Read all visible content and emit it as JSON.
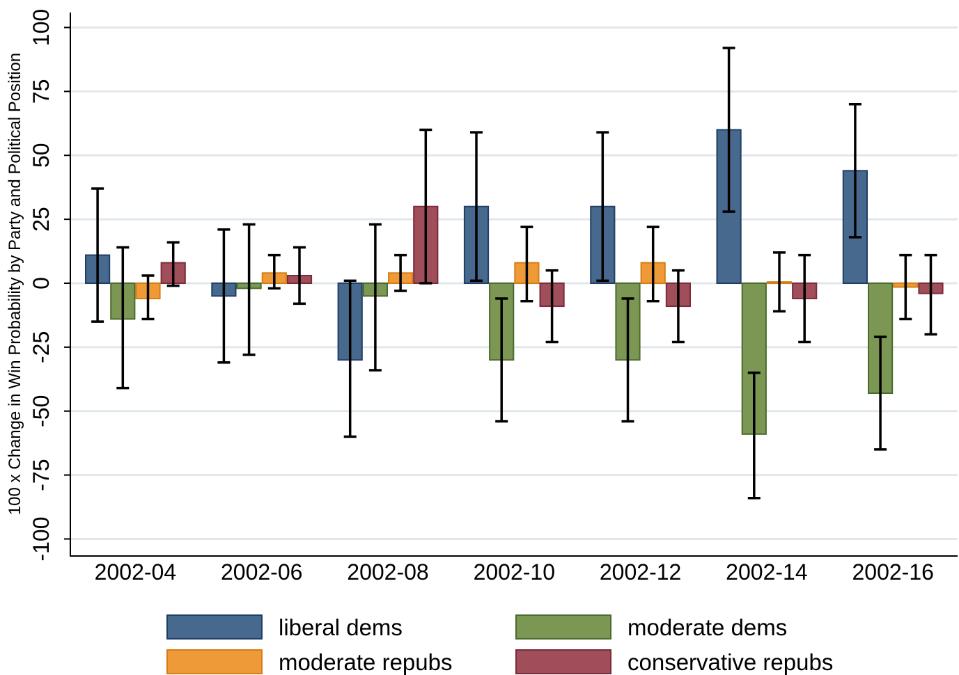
{
  "chart_data": {
    "type": "bar",
    "ylabel": "100 x Change in Win Probability by Party and Political Position",
    "xlabel": "",
    "ylim": [
      -105,
      107
    ],
    "yticks": [
      -100,
      -75,
      -50,
      -25,
      0,
      25,
      50,
      75,
      100
    ],
    "ytick_labels": [
      "-100",
      "-75",
      "-50",
      "-25",
      "0",
      "25",
      "50",
      "75",
      "100"
    ],
    "grid": true,
    "legend_position": "bottom",
    "categories": [
      "2002-04",
      "2002-06",
      "2002-08",
      "2002-10",
      "2002-12",
      "2002-14",
      "2002-16"
    ],
    "series": [
      {
        "name": "liberal dems",
        "fill": "#48698e",
        "stroke": "#1f3f66",
        "values": [
          11,
          -5,
          -30,
          30,
          30,
          60,
          44
        ],
        "ci_low": [
          -15,
          -31,
          -60,
          1,
          1,
          28,
          18
        ],
        "ci_high": [
          37,
          21,
          1,
          59,
          59,
          92,
          70
        ]
      },
      {
        "name": "moderate dems",
        "fill": "#7b9753",
        "stroke": "#4a6b2e",
        "values": [
          -14,
          -2,
          -5,
          -30,
          -30,
          -59,
          -43
        ],
        "ci_low": [
          -41,
          -28,
          -34,
          -54,
          -54,
          -84,
          -65
        ],
        "ci_high": [
          14,
          23,
          23,
          -6,
          -6,
          -35,
          -21
        ]
      },
      {
        "name": "moderate repubs",
        "fill": "#ef9a38",
        "stroke": "#d77d14",
        "values": [
          -6,
          4,
          4,
          8,
          8,
          0.5,
          -1.5
        ],
        "ci_low": [
          -14,
          -2,
          -3,
          -7,
          -7,
          -11,
          -14
        ],
        "ci_high": [
          3,
          11,
          11,
          22,
          22,
          12,
          11
        ]
      },
      {
        "name": "conservative repubs",
        "fill": "#a14e5b",
        "stroke": "#7c2b39",
        "values": [
          8,
          3,
          30,
          -9,
          -9,
          -6,
          -4
        ],
        "ci_low": [
          -1,
          -8,
          0,
          -23,
          -23,
          -23,
          -20
        ],
        "ci_high": [
          16,
          14,
          60,
          5,
          5,
          11,
          11
        ]
      }
    ]
  }
}
